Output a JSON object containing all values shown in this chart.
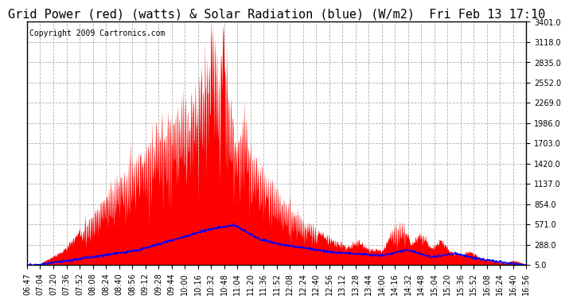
{
  "title": "Grid Power (red) (watts) & Solar Radiation (blue) (W/m2)  Fri Feb 13 17:10",
  "copyright": "Copyright 2009 Cartronics.com",
  "yticks": [
    5.0,
    288.0,
    571.0,
    854.0,
    1137.0,
    1420.0,
    1703.0,
    1986.0,
    2269.0,
    2552.0,
    2835.0,
    3118.0,
    3401.0
  ],
  "ymin": 5.0,
  "ymax": 3401.0,
  "xtick_labels": [
    "06:47",
    "07:04",
    "07:20",
    "07:36",
    "07:52",
    "08:08",
    "08:24",
    "08:40",
    "08:56",
    "09:12",
    "09:28",
    "09:44",
    "10:00",
    "10:16",
    "10:32",
    "10:48",
    "11:04",
    "11:20",
    "11:36",
    "11:52",
    "12:08",
    "12:24",
    "12:40",
    "12:56",
    "13:12",
    "13:28",
    "13:44",
    "14:00",
    "14:16",
    "14:32",
    "14:48",
    "15:04",
    "15:20",
    "15:36",
    "15:52",
    "16:08",
    "16:24",
    "16:40",
    "16:56"
  ],
  "background_color": "#ffffff",
  "plot_bg_color": "#ffffff",
  "grid_color": "#b0b0b0",
  "red_color": "#ff0000",
  "blue_color": "#0000ff",
  "title_fontsize": 11,
  "copyright_fontsize": 7,
  "tick_fontsize": 7,
  "title_color": "#000000"
}
